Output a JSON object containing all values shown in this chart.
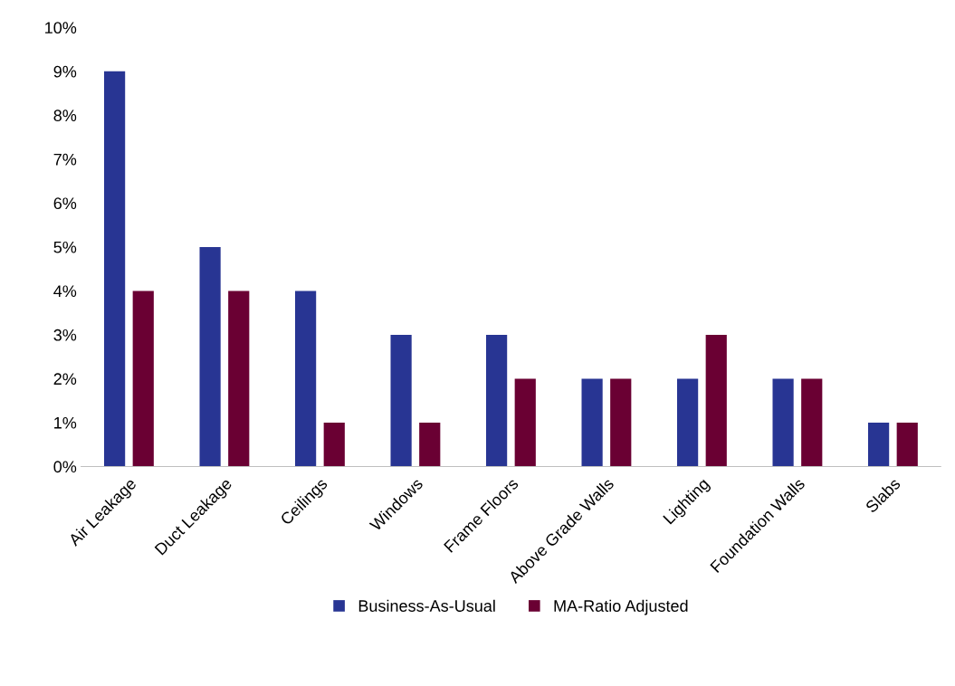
{
  "chart_data": {
    "type": "bar",
    "categories": [
      "Air Leakage",
      "Duct Leakage",
      "Ceilings",
      "Windows",
      "Frame Floors",
      "Above Grade Walls",
      "Lighting",
      "Foundation Walls",
      "Slabs"
    ],
    "series": [
      {
        "name": "Business-As-Usual",
        "color": "#283593",
        "values": [
          9,
          5,
          4,
          3,
          3,
          2,
          2,
          2,
          1
        ]
      },
      {
        "name": "MA-Ratio Adjusted",
        "color": "#6a0033",
        "values": [
          4,
          4,
          1,
          1,
          2,
          2,
          3,
          2,
          1
        ]
      }
    ],
    "ylim": [
      0,
      10
    ],
    "yticks": [
      {
        "value": 0,
        "label": "0%"
      },
      {
        "value": 1,
        "label": "1%"
      },
      {
        "value": 2,
        "label": "2%"
      },
      {
        "value": 3,
        "label": "3%"
      },
      {
        "value": 4,
        "label": "4%"
      },
      {
        "value": 5,
        "label": "5%"
      },
      {
        "value": 6,
        "label": "6%"
      },
      {
        "value": 7,
        "label": "7%"
      },
      {
        "value": 8,
        "label": "8%"
      },
      {
        "value": 9,
        "label": "9%"
      },
      {
        "value": 10,
        "label": "10%"
      }
    ],
    "grid": false,
    "legend": "bottom"
  }
}
